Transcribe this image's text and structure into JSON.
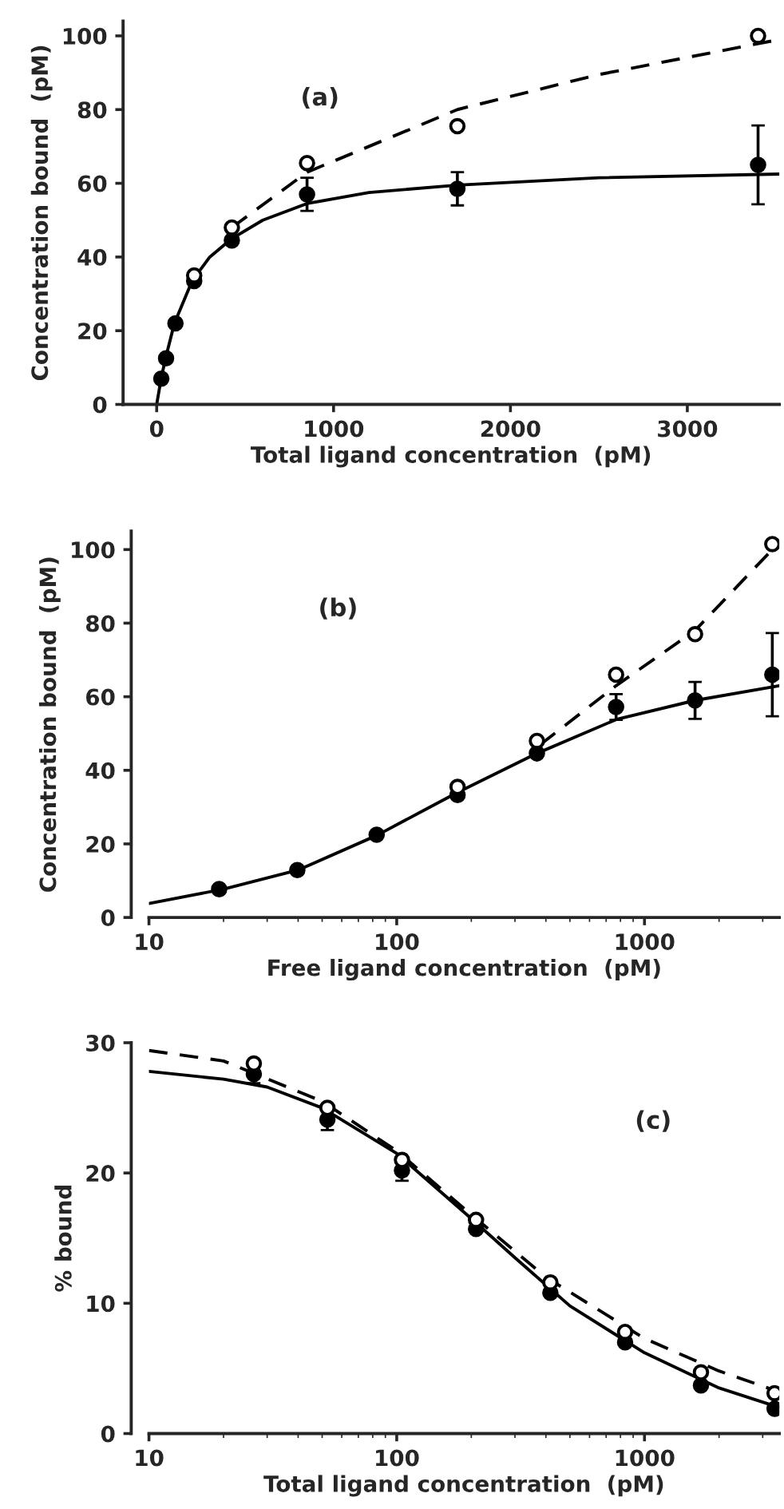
{
  "chart_data": [
    {
      "type": "scatter",
      "xlabel": "Total ligand concentration  (pM)",
      "ylabel": "Concentration bound  (pM)",
      "annotations": [
        "(a)"
      ],
      "xlim": [
        -190,
        3520
      ],
      "ylim": [
        0,
        104
      ],
      "xticks": [
        0,
        1000,
        2000,
        3000
      ],
      "yticks": [
        0,
        20,
        40,
        60,
        80,
        100
      ],
      "grid": false,
      "legend": false,
      "series": [
        {
          "type": "line",
          "color": "#000000",
          "line_style": "solid",
          "marker": "none",
          "x": [
            0,
            25,
            50,
            100,
            200,
            300,
            425,
            600,
            850,
            1200,
            1700,
            2500,
            3520
          ],
          "values": [
            0,
            7,
            12.5,
            22,
            33.5,
            40,
            45,
            50,
            54.5,
            57.5,
            59.5,
            61.5,
            62.5
          ]
        },
        {
          "type": "line",
          "color": "#000000",
          "line_style": "dashed",
          "marker": "none",
          "x": [
            425,
            850,
            1700,
            2500,
            3520
          ],
          "values": [
            48,
            63,
            80,
            89.5,
            99
          ]
        },
        {
          "color": "#ffffff",
          "marker": "circle",
          "x": [
            212,
            425,
            850,
            1700,
            3400
          ],
          "values": [
            35,
            48,
            65.5,
            75.5,
            100
          ]
        },
        {
          "color": "#000000",
          "marker": "circle",
          "x": [
            26,
            53,
            106,
            212,
            425,
            850,
            1700,
            3400
          ],
          "values": [
            7,
            12.5,
            22,
            33.5,
            44.5,
            57,
            58.5,
            65
          ],
          "errors": [
            null,
            null,
            null,
            null,
            null,
            4.5,
            4.5,
            10.7
          ]
        }
      ]
    },
    {
      "type": "scatter",
      "xlabel": "Free ligand concentration  (pM)",
      "ylabel": "Concentration bound  (pM)",
      "annotations": [
        "(b)"
      ],
      "log": "x",
      "xlim": [
        10,
        3500
      ],
      "ylim": [
        0,
        105
      ],
      "xticks": [
        10,
        100,
        1000
      ],
      "yticks": [
        0,
        20,
        40,
        60,
        80,
        100
      ],
      "grid": false,
      "legend": false,
      "series": [
        {
          "type": "line",
          "color": "#000000",
          "line_style": "solid",
          "marker": "none",
          "x": [
            10,
            20,
            40,
            83,
            176,
            368,
            768,
            1600,
            3500
          ],
          "values": [
            3.8,
            7.7,
            12.9,
            22.3,
            34,
            44.6,
            53.8,
            59,
            63
          ]
        },
        {
          "type": "line",
          "color": "#000000",
          "line_style": "dashed",
          "marker": "none",
          "x": [
            380,
            768,
            1600,
            3500
          ],
          "values": [
            47,
            63,
            78,
            102
          ]
        },
        {
          "color": "#ffffff",
          "marker": "circle",
          "x": [
            176,
            368,
            768,
            1600,
            3280
          ],
          "values": [
            35.5,
            48,
            66,
            77,
            101.5
          ]
        },
        {
          "color": "#000000",
          "marker": "circle",
          "x": [
            19.2,
            39.7,
            83,
            176,
            368,
            768,
            1600,
            3280
          ],
          "values": [
            7.7,
            12.9,
            22.5,
            33.3,
            44.6,
            57.2,
            59,
            66
          ],
          "errors": [
            null,
            null,
            null,
            null,
            null,
            3.5,
            5,
            11.3
          ]
        }
      ]
    },
    {
      "type": "scatter",
      "xlabel": "Total ligand concentration  (pM)",
      "ylabel": "% bound",
      "annotations": [
        "(c)"
      ],
      "log": "x",
      "xlim": [
        10,
        3500
      ],
      "ylim": [
        0,
        30
      ],
      "xticks": [
        10,
        100,
        1000
      ],
      "yticks": [
        0,
        10,
        20,
        30
      ],
      "grid": false,
      "legend": false,
      "series": [
        {
          "type": "line",
          "color": "#000000",
          "line_style": "solid",
          "marker": "none",
          "x": [
            10,
            20,
            30,
            50,
            100,
            200,
            300,
            500,
            1000,
            2000,
            3500
          ],
          "values": [
            27.8,
            27.2,
            26.6,
            25,
            21.5,
            16.5,
            13.5,
            9.8,
            6.2,
            3.5,
            2.0
          ]
        },
        {
          "type": "line",
          "color": "#000000",
          "line_style": "dashed",
          "marker": "none",
          "x": [
            10,
            20,
            50,
            100,
            200,
            400,
            1000,
            2000,
            3500
          ],
          "values": [
            29.4,
            28.6,
            25.5,
            21.7,
            16.8,
            12,
            7.3,
            4.8,
            3.2
          ]
        },
        {
          "color": "#ffffff",
          "marker": "circle",
          "x": [
            26.5,
            52.5,
            105,
            209,
            417,
            835,
            1690,
            3350
          ],
          "values": [
            28.4,
            25,
            21,
            16.4,
            11.6,
            7.8,
            4.7,
            3.1
          ]
        },
        {
          "color": "#000000",
          "marker": "circle",
          "x": [
            26.5,
            52.5,
            105,
            209,
            417,
            835,
            1690,
            3350
          ],
          "values": [
            27.6,
            24.1,
            20.2,
            15.7,
            10.8,
            7,
            3.7,
            1.9
          ],
          "errors": [
            0.7,
            0.8,
            0.8,
            null,
            null,
            null,
            null,
            null
          ]
        }
      ]
    }
  ]
}
